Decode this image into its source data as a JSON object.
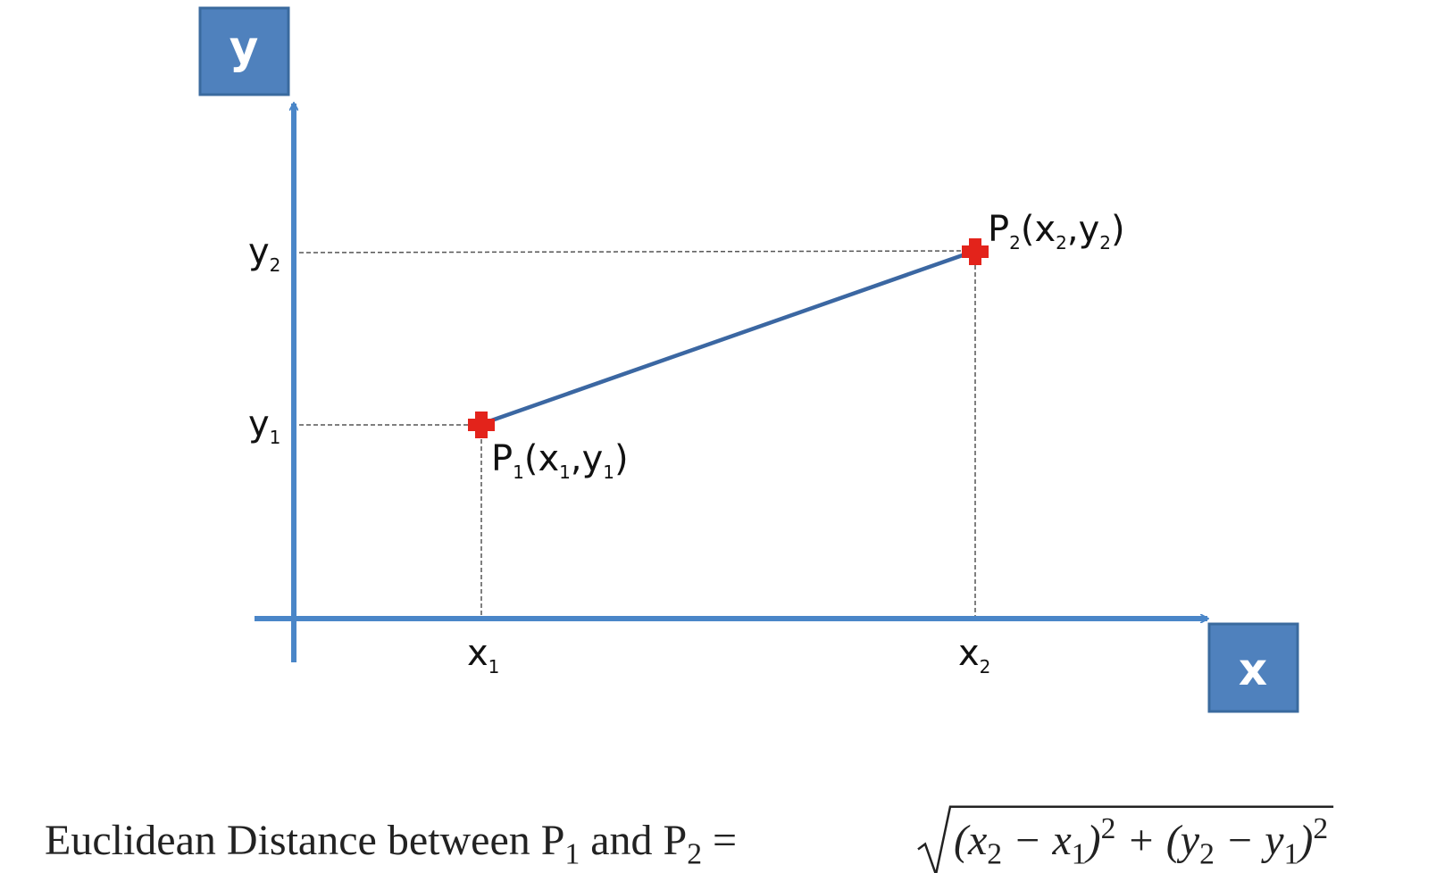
{
  "axes": {
    "y_box": "y",
    "x_box": "x"
  },
  "ticks": {
    "y2": [
      "y",
      {
        "sub": "2"
      }
    ],
    "y1": [
      "y",
      {
        "sub": "1"
      }
    ],
    "x1": [
      "x",
      {
        "sub": "1"
      }
    ],
    "x2": [
      "x",
      {
        "sub": "2"
      }
    ]
  },
  "points": {
    "p1": [
      "P",
      {
        "sub": "1"
      },
      "(x",
      {
        "sub": "1"
      },
      ",y",
      {
        "sub": "1"
      },
      ")"
    ],
    "p2": [
      "P",
      {
        "sub": "2"
      },
      "(x",
      {
        "sub": "2"
      },
      ",y",
      {
        "sub": "2"
      },
      ")"
    ]
  },
  "formula": {
    "lhs": [
      "Euclidean Distance between P",
      {
        "sub": "1"
      },
      " and P",
      {
        "sub": "2"
      },
      " ="
    ],
    "radicand": [
      "(x",
      {
        "sub": "2"
      },
      " − x",
      {
        "sub": "1"
      },
      ")",
      {
        "sup": "2"
      },
      " + (y",
      {
        "sub": "2"
      },
      " − y",
      {
        "sub": "1"
      },
      ")",
      {
        "sup": "2"
      }
    ]
  }
}
